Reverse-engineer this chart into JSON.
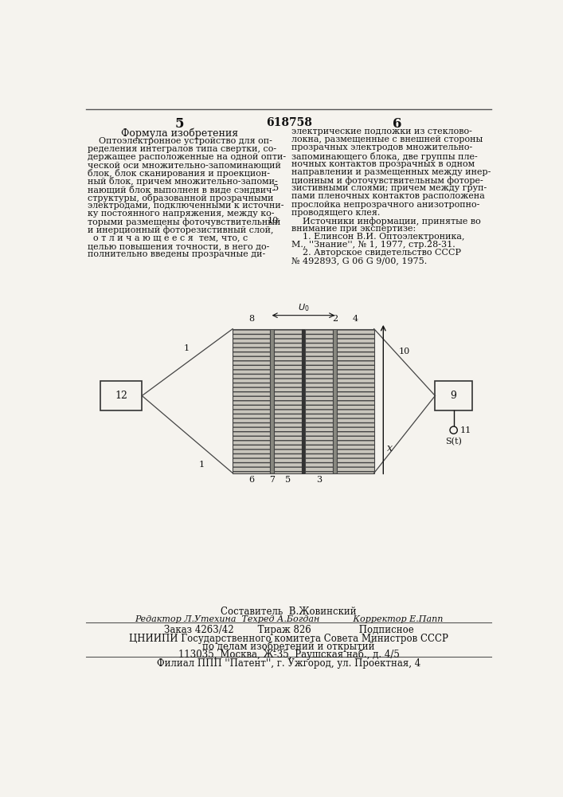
{
  "bg_color": "#f5f3ee",
  "text_color": "#111111",
  "page_number_left": "5",
  "page_number_center": "618758",
  "page_number_right": "6",
  "section_title": "Формула изобретения",
  "left_col_lines": [
    "    Оптоэлектронное устройство для оп-",
    "ределения интегралов типа свертки, со-",
    "держащее расположенные на одной опти-",
    "ческой оси множительно-запоминающий",
    "блок, блок сканирования и проекцион-",
    "ный блок, причем множительно-запоми-",
    "нающий блок выполнен в виде сэндвич-",
    "структуры, образованной прозрачными",
    "электродами, подключенными к источни-",
    "ку постоянного напряжения, между ко-",
    "торыми размещены фоточувствительный",
    "и инерционный фоторезистивный слой,",
    "  о т л и ч а ю щ е е с я  тем, что, с",
    "целью повышения точности, в него до-",
    "полнительно введены прозрачные ди-"
  ],
  "right_col_lines": [
    "электрические подложки из стеклово-",
    "локна, размещенные с внешней стороны",
    "прозрачных электродов множительно-",
    "запоминающего блока, две группы пле-",
    "ночных контактов прозрачных в одном",
    "направлении и размещенных между инер-",
    "ционным и фоточувствительным фоторе-",
    "зистивными слоями; причем между груп-",
    "пами пленочных контактов расположена",
    "прослойка непрозрачного анизотропно-",
    "проводящего клея.",
    "    Источники информации, принятые во",
    "внимание при экспертизе:",
    "    1. Елинсон В.И. Оптоэлектроника,",
    "М., ''Знание'', № 1, 1977, стр.28-31.",
    "    2. Авторское свидетельство СССР",
    "№ 492893, G 06 G 9/00, 1975."
  ],
  "right_col_line_numbers": [
    null,
    null,
    null,
    null,
    null,
    null,
    null,
    null,
    null,
    null,
    null,
    null,
    null,
    null,
    null,
    null,
    null
  ],
  "line5_prefix": "5",
  "line10_prefix": "10",
  "footer_composer": "Составитель  В.Жовинский",
  "footer_editor_row": "Редактор Л.Утехина  Техред А.Богдан            Корректор Е.Папп",
  "footer_order": "Заказ 4263/42        Тираж 826                Подписное",
  "footer_org": "ЦНИИПИ Государственного комитета Совета Министров СССР",
  "footer_dept": "по делам изобретений и открытий",
  "footer_addr": "113035, Москва, Ж-35, Раушская наб., д. 4/5",
  "footer_branch": "Филиал ППП ''Патент'', г. Ужгород, ул. Проектная, 4"
}
